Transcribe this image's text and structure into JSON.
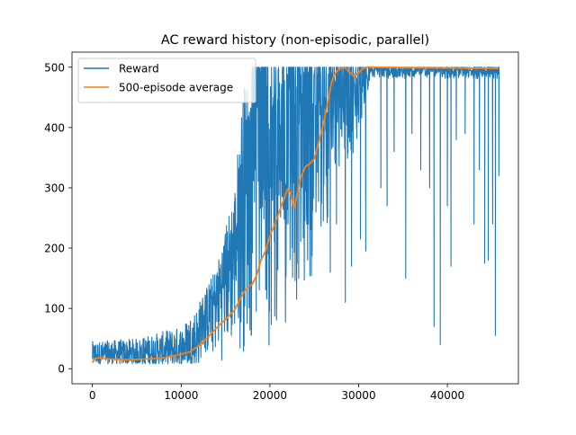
{
  "chart_data": {
    "type": "line",
    "title": "AC reward history (non-episodic, parallel)",
    "xlabel": "",
    "ylabel": "",
    "xlim": [
      -2300,
      48000
    ],
    "ylim": [
      -25,
      525
    ],
    "x_ticks": [
      0,
      10000,
      20000,
      30000,
      40000
    ],
    "x_tick_labels": [
      "0",
      "10000",
      "20000",
      "30000",
      "40000"
    ],
    "y_ticks": [
      0,
      100,
      200,
      300,
      400,
      500
    ],
    "y_tick_labels": [
      "0",
      "100",
      "200",
      "300",
      "400",
      "500"
    ],
    "grid": false,
    "legend_position": "top-left",
    "series": [
      {
        "name": "Reward",
        "color": "#1f77b4",
        "kind": "noisy-band",
        "n_episodes": 45800,
        "min_value": 8,
        "max_value": 500,
        "upper_envelope": [
          [
            0,
            45
          ],
          [
            5000,
            50
          ],
          [
            10000,
            70
          ],
          [
            12000,
            110
          ],
          [
            14000,
            170
          ],
          [
            16000,
            300
          ],
          [
            17000,
            470
          ],
          [
            18000,
            500
          ],
          [
            45800,
            500
          ]
        ],
        "lower_envelope": [
          [
            0,
            8
          ],
          [
            10000,
            8
          ],
          [
            15000,
            10
          ],
          [
            18000,
            15
          ],
          [
            20000,
            30
          ],
          [
            22000,
            60
          ],
          [
            24000,
            110
          ],
          [
            26000,
            200
          ],
          [
            28000,
            300
          ],
          [
            30000,
            380
          ],
          [
            31500,
            480
          ],
          [
            45800,
            480
          ]
        ],
        "dips": [
          [
            26800,
            160
          ],
          [
            27500,
            240
          ],
          [
            28500,
            110
          ],
          [
            29200,
            170
          ],
          [
            30200,
            215
          ],
          [
            30800,
            195
          ],
          [
            32500,
            300
          ],
          [
            33200,
            270
          ],
          [
            34000,
            360
          ],
          [
            35300,
            150
          ],
          [
            36000,
            390
          ],
          [
            37000,
            330
          ],
          [
            38000,
            300
          ],
          [
            38500,
            70
          ],
          [
            39200,
            40
          ],
          [
            40000,
            270
          ],
          [
            40400,
            170
          ],
          [
            41000,
            380
          ],
          [
            42000,
            390
          ],
          [
            43000,
            240
          ],
          [
            43600,
            330
          ],
          [
            44200,
            175
          ],
          [
            44600,
            180
          ],
          [
            45100,
            240
          ],
          [
            45400,
            55
          ],
          [
            45800,
            320
          ]
        ]
      },
      {
        "name": "500-episode average",
        "color": "#ff7f0e",
        "kind": "line",
        "points": [
          [
            0,
            10
          ],
          [
            300,
            17
          ],
          [
            800,
            18
          ],
          [
            2000,
            16
          ],
          [
            4000,
            15
          ],
          [
            6000,
            16
          ],
          [
            8000,
            18
          ],
          [
            10000,
            24
          ],
          [
            11000,
            28
          ],
          [
            12000,
            38
          ],
          [
            13000,
            52
          ],
          [
            14000,
            68
          ],
          [
            15000,
            82
          ],
          [
            16000,
            97
          ],
          [
            17000,
            125
          ],
          [
            17500,
            135
          ],
          [
            18000,
            140
          ],
          [
            18500,
            155
          ],
          [
            19000,
            180
          ],
          [
            19500,
            195
          ],
          [
            20000,
            220
          ],
          [
            20500,
            238
          ],
          [
            21000,
            258
          ],
          [
            21500,
            278
          ],
          [
            22000,
            298
          ],
          [
            22300,
            292
          ],
          [
            22600,
            270
          ],
          [
            22800,
            268
          ],
          [
            23000,
            285
          ],
          [
            23500,
            318
          ],
          [
            24000,
            335
          ],
          [
            24500,
            340
          ],
          [
            25000,
            348
          ],
          [
            25500,
            375
          ],
          [
            26000,
            405
          ],
          [
            26500,
            440
          ],
          [
            27000,
            478
          ],
          [
            27500,
            493
          ],
          [
            28000,
            498
          ],
          [
            28500,
            499
          ],
          [
            29000,
            492
          ],
          [
            29500,
            484
          ],
          [
            30000,
            491
          ],
          [
            30500,
            498
          ],
          [
            31000,
            500
          ],
          [
            45800,
            498
          ]
        ]
      }
    ]
  }
}
